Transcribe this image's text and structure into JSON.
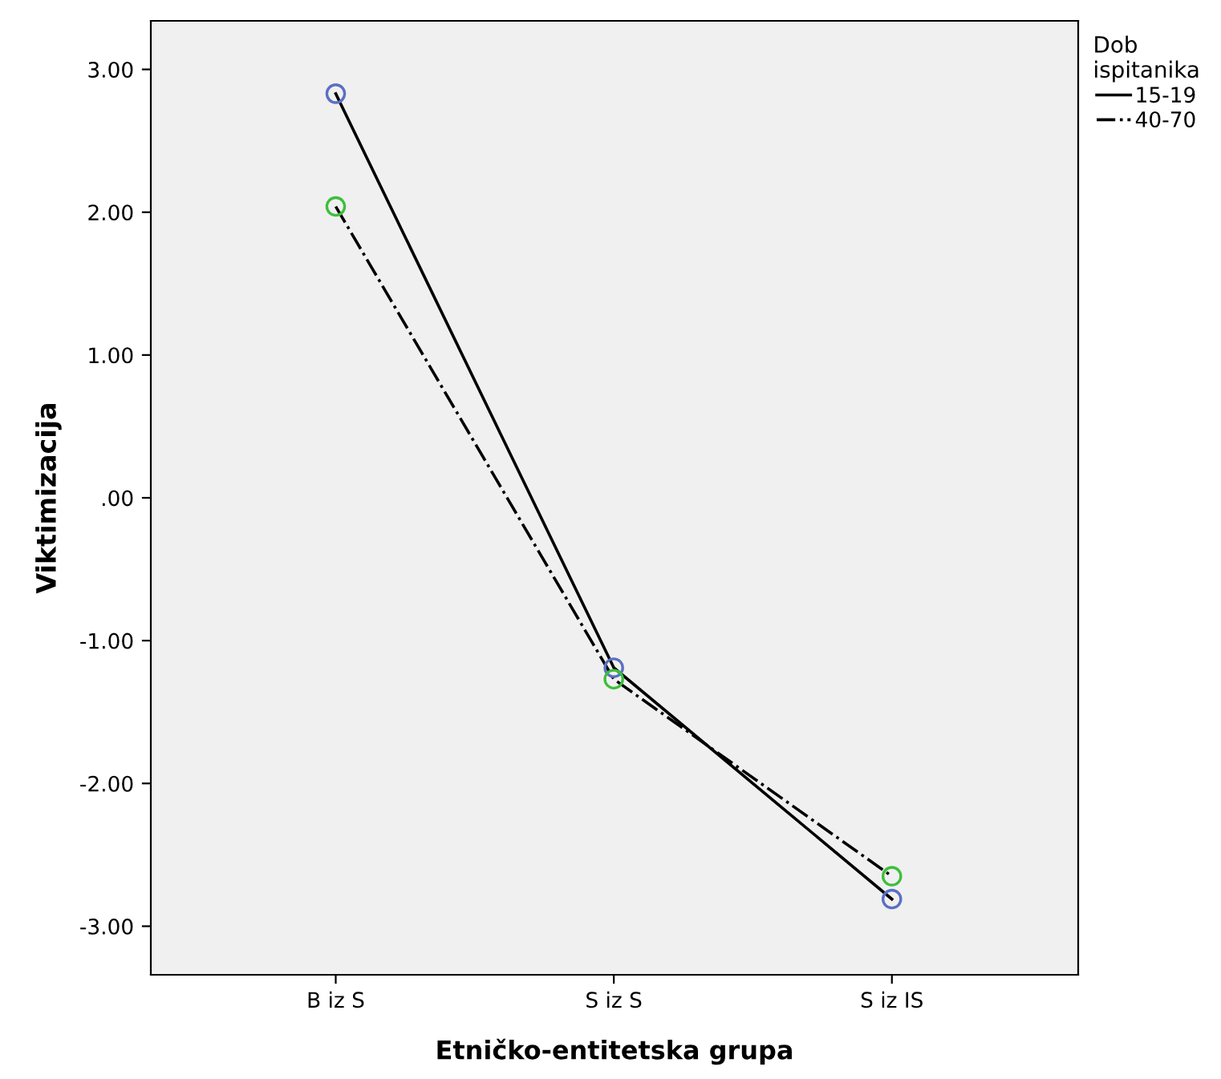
{
  "chart_data": {
    "type": "line",
    "xlabel": "Etničko-entitetska grupa",
    "ylabel": "Viktimizacija",
    "legend_title": "Dob\nispitanika",
    "categories": [
      "B iz S",
      "S iz S",
      "S iz IS"
    ],
    "series": [
      {
        "name": "15-19",
        "color": "#000000",
        "colors": [
          "#5b6fc4",
          "#5b6fc4",
          "#5b6fc4"
        ],
        "line_style": "solid",
        "values": [
          2.83,
          -1.19,
          -2.81
        ]
      },
      {
        "name": "40-70",
        "color": "#000000",
        "colors": [
          "#3cbf3c",
          "#3cbf3c",
          "#3cbf3c"
        ],
        "line_style": "dashdot",
        "values": [
          2.04,
          -1.27,
          -2.65
        ]
      }
    ],
    "ylim": [
      -3.34,
      3.34
    ],
    "yticks": [
      {
        "value": 3,
        "label": "3.00"
      },
      {
        "value": 2,
        "label": "2.00"
      },
      {
        "value": 1,
        "label": "1.00"
      },
      {
        "value": 0,
        "label": ".00"
      },
      {
        "value": -1,
        "label": "-1.00"
      },
      {
        "value": -2,
        "label": "-2.00"
      },
      {
        "value": -3,
        "label": "-3.00"
      }
    ],
    "marker": "circle",
    "grid": false,
    "legend": "right"
  }
}
